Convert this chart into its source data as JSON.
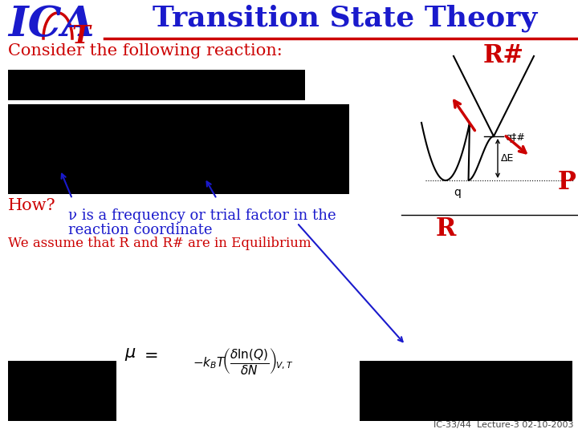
{
  "title": "Transition State Theory",
  "title_color": "#1a1acc",
  "title_fontsize": 26,
  "bg_color": "#ffffff",
  "logo_blue": "#1a1acc",
  "logo_red": "#cc0000",
  "consider_text": "Consider the following reaction:",
  "consider_color": "#cc0000",
  "consider_fontsize": 15,
  "how_text": "How?",
  "how_color": "#cc0000",
  "how_fontsize": 15,
  "nu_text1": "ν is a frequency or trial factor in the",
  "nu_text2": "reaction coordinate",
  "nu_color": "#1a1acc",
  "nu_fontsize": 13,
  "equilibrium_text": "We assume that R and R# are in Equilibrium",
  "equilibrium_color": "#cc0000",
  "equilibrium_fontsize": 12,
  "Rhash_label": "R#",
  "Rhash_color": "#cc0000",
  "Rhash_fontsize": 22,
  "P_label": "P",
  "P_color": "#cc0000",
  "P_fontsize": 22,
  "R_label": "R",
  "R_color": "#cc0000",
  "R_fontsize": 22,
  "q_label": "q",
  "q_fontsize": 10,
  "qhash_label": "qⁿ#",
  "qhash_fontsize": 9,
  "deltaE_label": "ΔE",
  "deltaE_fontsize": 9,
  "footer_text": "IC-33/44  Lecture-3 02-10-2003",
  "footer_color": "#444444",
  "footer_fontsize": 8
}
